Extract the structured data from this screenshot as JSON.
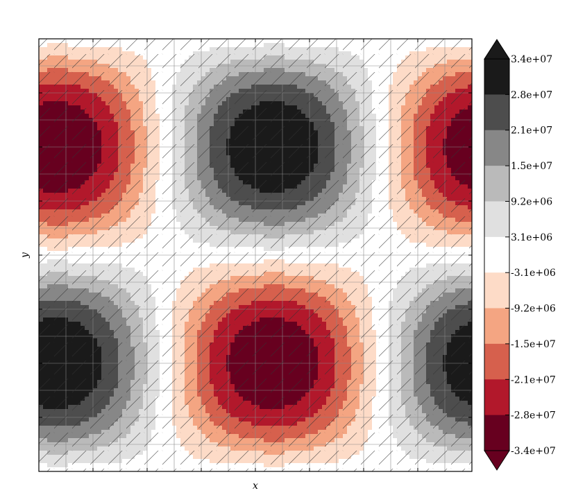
{
  "chart_data": {
    "type": "contour",
    "title": "",
    "xlabel": "x",
    "ylabel": "y",
    "grid": true,
    "hatch": "diagonal lines over whole field",
    "colormap": "RdGy",
    "function": "z = A * cos(k*x) * sin(k*y) over a square domain",
    "amplitude": 34000000,
    "colorbar": {
      "extend": "both",
      "tick_labels": [
        "3.4e+07",
        "2.8e+07",
        "2.1e+07",
        "1.5e+07",
        "9.2e+06",
        "3.1e+06",
        "-3.1e+06",
        "-9.2e+06",
        "-1.5e+07",
        "-2.1e+07",
        "-2.8e+07",
        "-3.4e+07"
      ],
      "levels": [
        34000000,
        27500000,
        21000000,
        15000000,
        9200000,
        3100000,
        -3100000,
        -9200000,
        -15000000,
        -21000000,
        -27500000,
        -34000000
      ],
      "colors_top_to_bottom": [
        "#1a1a1a",
        "#4d4d4d",
        "#878787",
        "#bababa",
        "#e0e0e0",
        "#ffffff",
        "#fddbc7",
        "#f4a582",
        "#d6604d",
        "#b2182b",
        "#67001f"
      ]
    },
    "extrema": [
      {
        "kind": "max",
        "label": "dark peak",
        "x_frac": 0.04,
        "y_frac": 0.75
      },
      {
        "kind": "min",
        "label": "red trough",
        "x_frac": 0.46,
        "y_frac": 0.77
      },
      {
        "kind": "max",
        "label": "dark peak",
        "x_frac": 0.96,
        "y_frac": 0.77
      },
      {
        "kind": "min",
        "label": "red trough",
        "x_frac": 0.02,
        "y_frac": 0.25
      },
      {
        "kind": "max",
        "label": "dark peak",
        "x_frac": 0.53,
        "y_frac": 0.25
      },
      {
        "kind": "min",
        "label": "red trough",
        "x_frac": 0.98,
        "y_frac": 0.26
      }
    ]
  }
}
